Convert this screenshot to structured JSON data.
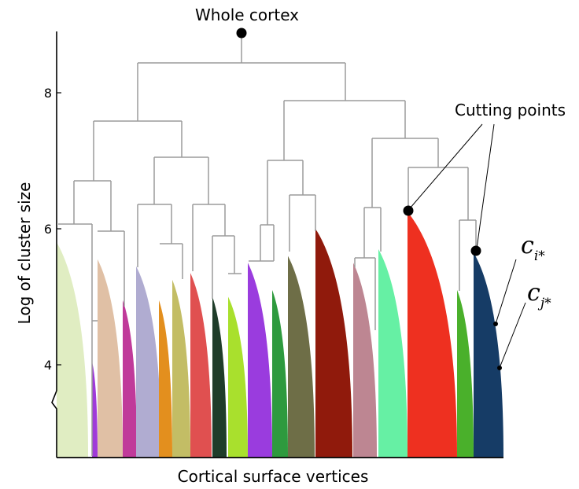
{
  "figure": {
    "title": "Whole cortex",
    "ylabel": "Log of cluster size",
    "xlabel": "Cortical surface vertices",
    "annotation_cutting": "Cutting points",
    "cluster_i_base": "c",
    "cluster_i_sub": "i*",
    "cluster_j_base": "c",
    "cluster_j_sub": "j*"
  },
  "chart_data": {
    "type": "dendrogram",
    "ylabel": "Log of cluster size",
    "xlabel": "Cortical surface vertices",
    "yticks": [
      4,
      6,
      8
    ],
    "ylim": [
      2.6,
      8.9
    ],
    "axis_break": true,
    "root_height": 8.8,
    "cutting_points": [
      6.25,
      5.65
    ],
    "merge_heights": [
      8.45,
      8.05,
      7.6,
      7.1,
      6.9,
      6.75,
      6.05,
      5.8
    ],
    "clusters": [
      {
        "color": "#e0edc2",
        "height": 5.8
      },
      {
        "color": "#a03ad9",
        "height": 4.05
      },
      {
        "color": "#e0c0a5",
        "height": 5.55
      },
      {
        "color": "#c03a9a",
        "height": 4.95
      },
      {
        "color": "#b0acd1",
        "height": 5.45
      },
      {
        "color": "#e38f1e",
        "height": 4.95
      },
      {
        "color": "#c3bd65",
        "height": 5.25
      },
      {
        "color": "#e05050",
        "height": 5.35
      },
      {
        "color": "#1f3d2a",
        "height": 5.0
      },
      {
        "color": "#a9e02d",
        "height": 5.0
      },
      {
        "color": "#9a3cde",
        "height": 5.5
      },
      {
        "color": "#2e9a3e",
        "height": 5.1
      },
      {
        "color": "#6e6e47",
        "height": 5.6
      },
      {
        "color": "#901a0c",
        "height": 6.0
      },
      {
        "color": "#bd8692",
        "height": 5.5
      },
      {
        "color": "#66f0a4",
        "height": 5.7
      },
      {
        "color": "#ee3020",
        "height": 6.25
      },
      {
        "color": "#4ab02b",
        "height": 5.1
      },
      {
        "color": "#163c66",
        "height": 5.65
      }
    ]
  }
}
